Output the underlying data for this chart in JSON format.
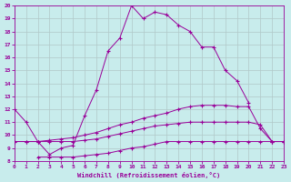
{
  "xlabel": "Windchill (Refroidissement éolien,°C)",
  "bg_color": "#c8ecec",
  "grid_color": "#b0c8c8",
  "line_color": "#990099",
  "xlim": [
    0,
    23
  ],
  "ylim": [
    8,
    20
  ],
  "xticks": [
    0,
    1,
    2,
    3,
    4,
    5,
    6,
    7,
    8,
    9,
    10,
    11,
    12,
    13,
    14,
    15,
    16,
    17,
    18,
    19,
    20,
    21,
    22,
    23
  ],
  "yticks": [
    8,
    9,
    10,
    11,
    12,
    13,
    14,
    15,
    16,
    17,
    18,
    19,
    20
  ],
  "series1_x": [
    0,
    1,
    2,
    3,
    4,
    5,
    6,
    7,
    8,
    9,
    10,
    11,
    12,
    13,
    14,
    15,
    16,
    17,
    18,
    19,
    20
  ],
  "series1_y": [
    12,
    11,
    9.5,
    8.5,
    9.0,
    9.2,
    11.5,
    13.5,
    16.5,
    17.5,
    20.0,
    19.0,
    19.5,
    19.3,
    18.5,
    18.0,
    16.8,
    16.8,
    15.0,
    14.2,
    12.5
  ],
  "series2_x": [
    0,
    1,
    2,
    3,
    4,
    5,
    6,
    7,
    8,
    9,
    10,
    11,
    12,
    13,
    14,
    15,
    16,
    17,
    18,
    19,
    20,
    21,
    22,
    23
  ],
  "series2_y": [
    9.5,
    9.5,
    9.5,
    9.6,
    9.7,
    9.8,
    10.0,
    10.2,
    10.5,
    10.8,
    11.0,
    11.3,
    11.5,
    11.7,
    12.0,
    12.2,
    12.3,
    12.3,
    12.3,
    12.2,
    12.2,
    10.5,
    9.5,
    9.5
  ],
  "series3_x": [
    0,
    1,
    2,
    3,
    4,
    5,
    6,
    7,
    8,
    9,
    10,
    11,
    12,
    13,
    14,
    15,
    16,
    17,
    18,
    19,
    20,
    21,
    22,
    23
  ],
  "series3_y": [
    9.5,
    9.5,
    9.5,
    9.5,
    9.5,
    9.5,
    9.6,
    9.7,
    9.9,
    10.1,
    10.3,
    10.5,
    10.7,
    10.8,
    10.9,
    11.0,
    11.0,
    11.0,
    11.0,
    11.0,
    11.0,
    10.8,
    9.5,
    9.5
  ],
  "series4_x": [
    2,
    3,
    4,
    5,
    6,
    7,
    8,
    9,
    10,
    11,
    12,
    13,
    14,
    15,
    16,
    17,
    18,
    19,
    20,
    21,
    22,
    23
  ],
  "series4_y": [
    8.3,
    8.3,
    8.3,
    8.3,
    8.4,
    8.5,
    8.6,
    8.8,
    9.0,
    9.1,
    9.3,
    9.5,
    9.5,
    9.5,
    9.5,
    9.5,
    9.5,
    9.5,
    9.5,
    9.5,
    9.5,
    9.5
  ]
}
